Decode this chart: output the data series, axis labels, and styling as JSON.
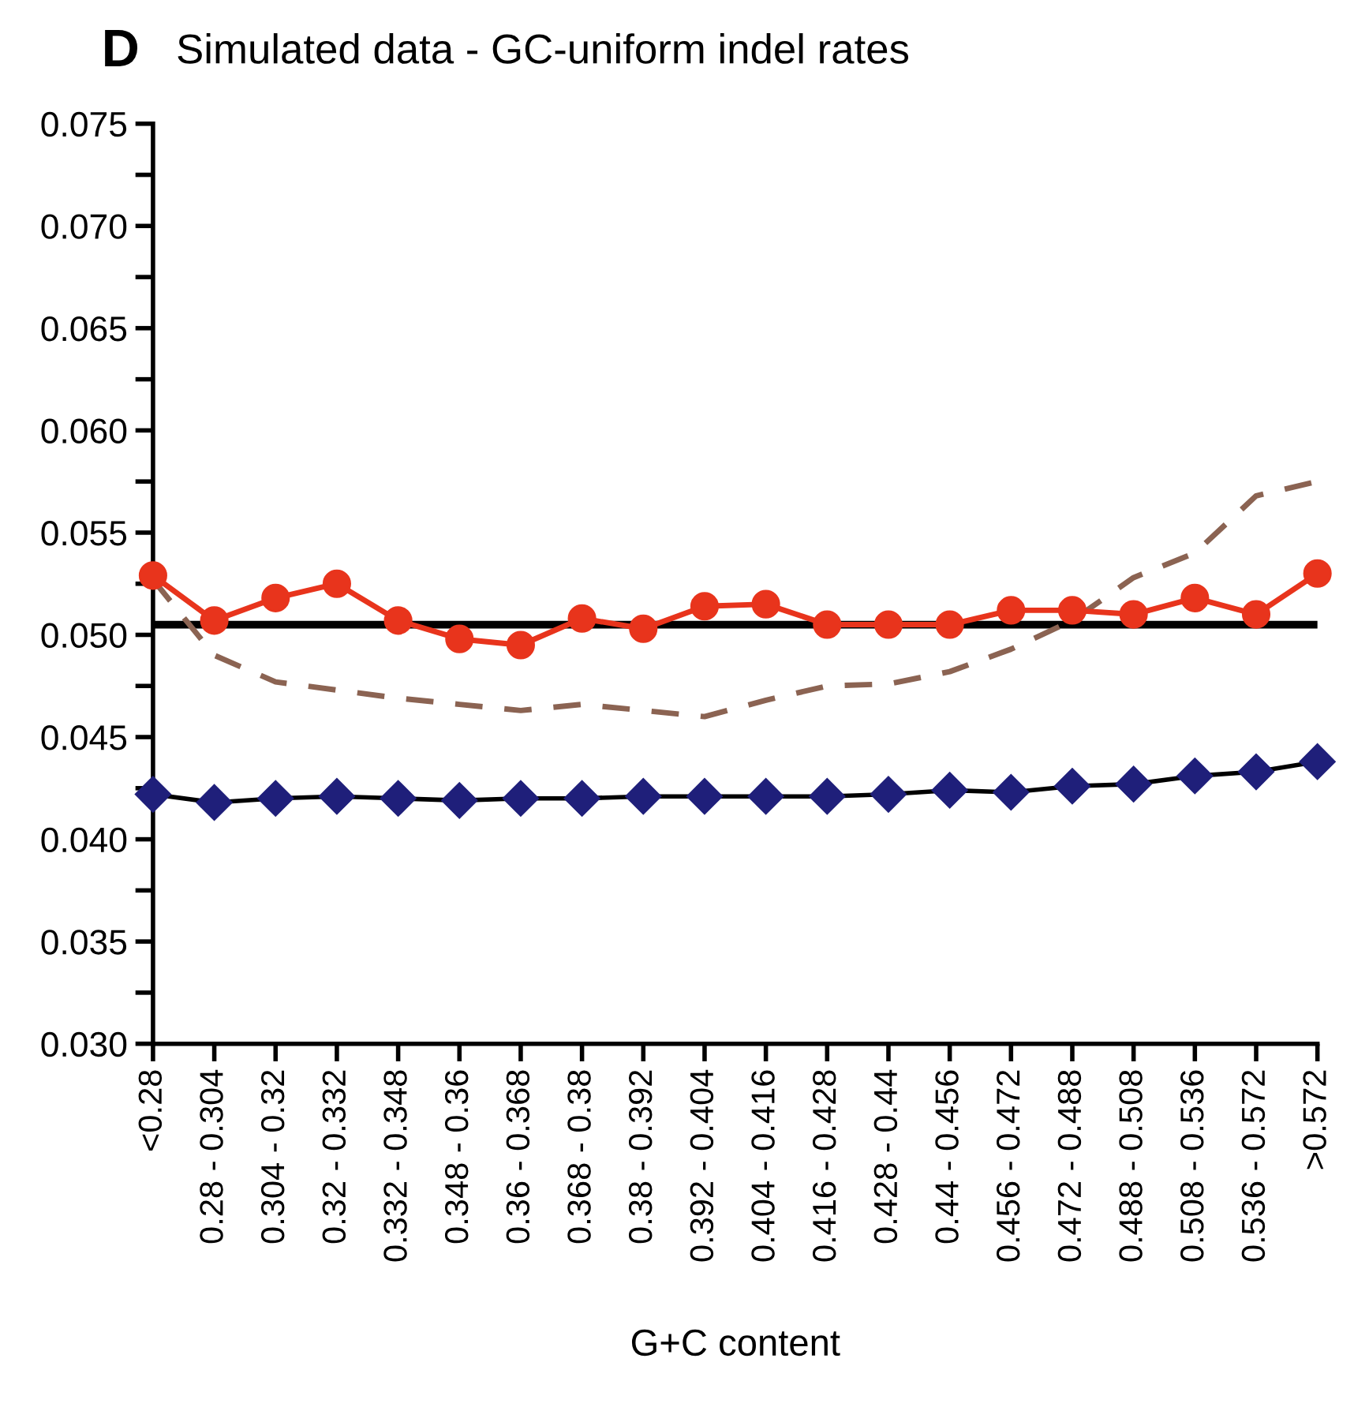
{
  "chart_data": {
    "type": "line",
    "title": "Simulated data - GC-uniform indel rates",
    "xlabel": "G+C content",
    "annotations": [
      "D"
    ],
    "categories": [
      "<0.28",
      "0.28 - 0.304",
      "0.304 - 0.32",
      "0.32 - 0.332",
      "0.332 - 0.348",
      "0.348 - 0.36",
      "0.36 - 0.368",
      "0.368 - 0.38",
      "0.38 - 0.392",
      "0.392 - 0.404",
      "0.404 - 0.416",
      "0.416 - 0.428",
      "0.428 - 0.44",
      "0.44 - 0.456",
      "0.456 - 0.472",
      "0.472 - 0.488",
      "0.488 - 0.508",
      "0.508 - 0.536",
      "0.536 - 0.572",
      ">0.572"
    ],
    "series": [
      {
        "color": "#8b6352",
        "marker": "none",
        "line_style": "dashed",
        "values": [
          0.0527,
          0.049,
          0.0477,
          0.0473,
          0.0469,
          0.0466,
          0.0463,
          0.0466,
          0.0463,
          0.046,
          0.0468,
          0.0475,
          0.0476,
          0.0482,
          0.0493,
          0.0507,
          0.0528,
          0.054,
          0.0568,
          0.0575
        ]
      },
      {
        "color": "#e8341c",
        "marker": "circle",
        "line_style": "solid",
        "values": [
          0.0529,
          0.0507,
          0.0518,
          0.0525,
          0.0507,
          0.0498,
          0.0495,
          0.0508,
          0.0503,
          0.0514,
          0.0515,
          0.0505,
          0.0505,
          0.0505,
          0.0512,
          0.0512,
          0.051,
          0.0518,
          0.051,
          0.053
        ]
      },
      {
        "color": "#1f1f7a",
        "marker": "diamond",
        "line_style": "solid",
        "values": [
          0.0422,
          0.0418,
          0.042,
          0.0421,
          0.042,
          0.0419,
          0.042,
          0.042,
          0.0421,
          0.0421,
          0.0421,
          0.0421,
          0.0422,
          0.0424,
          0.0423,
          0.0426,
          0.0427,
          0.0431,
          0.0433,
          0.0438
        ]
      }
    ],
    "ref_lines": [
      {
        "axis": "y",
        "value": 0.0505,
        "color": "#000000",
        "line_style": "solid"
      }
    ],
    "ylim": [
      0.03,
      0.075
    ],
    "yticks": [
      {
        "value": 0.03,
        "label": "0.030"
      },
      {
        "value": 0.0325,
        "label": null
      },
      {
        "value": 0.035,
        "label": "0.035"
      },
      {
        "value": 0.0375,
        "label": null
      },
      {
        "value": 0.04,
        "label": "0.040"
      },
      {
        "value": 0.0425,
        "label": null
      },
      {
        "value": 0.045,
        "label": "0.045"
      },
      {
        "value": 0.0475,
        "label": null
      },
      {
        "value": 0.05,
        "label": "0.050"
      },
      {
        "value": 0.0525,
        "label": null
      },
      {
        "value": 0.055,
        "label": "0.055"
      },
      {
        "value": 0.0575,
        "label": null
      },
      {
        "value": 0.06,
        "label": "0.060"
      },
      {
        "value": 0.0625,
        "label": null
      },
      {
        "value": 0.065,
        "label": "0.065"
      },
      {
        "value": 0.0675,
        "label": null
      },
      {
        "value": 0.07,
        "label": "0.070"
      },
      {
        "value": 0.0725,
        "label": null
      },
      {
        "value": 0.075,
        "label": "0.075"
      }
    ],
    "grid": false,
    "legend": false
  }
}
